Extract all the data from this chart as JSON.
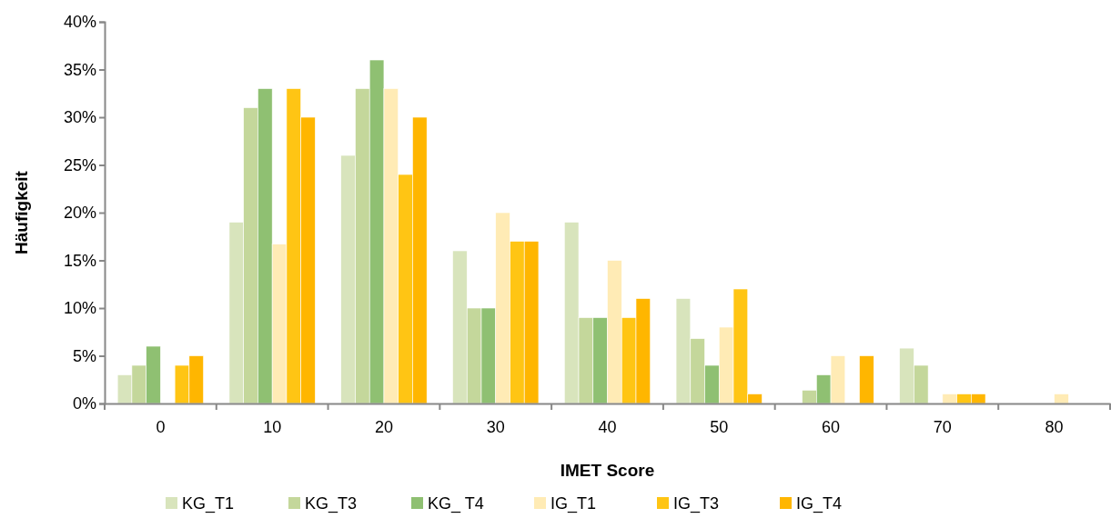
{
  "chart_data": {
    "type": "bar",
    "xlabel": "IMET Score",
    "ylabel": "Häufigkeit",
    "categories": [
      "0",
      "10",
      "20",
      "30",
      "40",
      "50",
      "60",
      "70",
      "80"
    ],
    "series": [
      {
        "name": "KG_T1",
        "color": "#d8e4bc",
        "values": [
          3,
          19,
          26,
          16,
          19,
          11,
          0,
          5.8,
          0
        ]
      },
      {
        "name": "KG_T3",
        "color": "#c4d79b",
        "values": [
          4,
          31,
          33,
          10,
          9,
          6.8,
          1.4,
          4,
          0
        ]
      },
      {
        "name": "KG_ T4",
        "color": "#8fc072",
        "values": [
          6,
          33,
          36,
          10,
          9,
          4,
          3,
          0,
          0
        ]
      },
      {
        "name": "IG_T1",
        "color": "#ffebb5",
        "values": [
          0,
          16.7,
          33,
          20,
          15,
          8,
          5,
          1,
          1
        ]
      },
      {
        "name": "IG_T3",
        "color": "#ffc514",
        "values": [
          4,
          33,
          24,
          17,
          9,
          12,
          0,
          1,
          0
        ]
      },
      {
        "name": "IG_T4",
        "color": "#ffb600",
        "values": [
          5,
          30,
          30,
          17,
          11,
          1,
          5,
          1,
          0
        ]
      }
    ],
    "ylim": [
      0,
      40
    ],
    "yticks": [
      {
        "value": 0,
        "label": "0%"
      },
      {
        "value": 5,
        "label": "5%"
      },
      {
        "value": 10,
        "label": "10%"
      },
      {
        "value": 15,
        "label": "15%"
      },
      {
        "value": 20,
        "label": "20%"
      },
      {
        "value": 25,
        "label": "25%"
      },
      {
        "value": 30,
        "label": "30%"
      },
      {
        "value": 35,
        "label": "35%"
      },
      {
        "value": 40,
        "label": "40%"
      }
    ],
    "grid": false,
    "legend": "bottom"
  }
}
